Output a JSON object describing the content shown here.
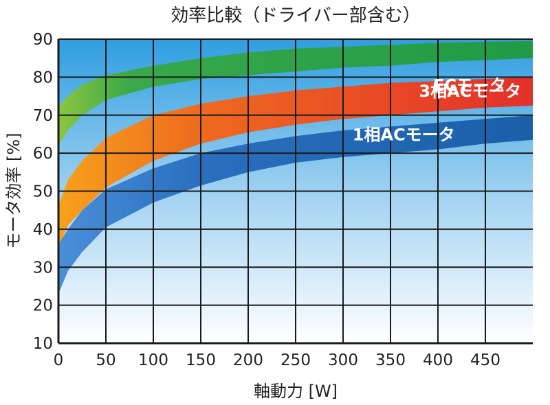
{
  "chart_data": {
    "type": "area",
    "title": "効率比較（ドライバー部含む）",
    "xlabel": "軸動力 [W]",
    "ylabel": "モータ効率 [%]",
    "xlim": [
      0,
      500
    ],
    "ylim": [
      10,
      90
    ],
    "x_ticks": [
      0,
      50,
      100,
      150,
      200,
      250,
      300,
      350,
      400,
      450
    ],
    "y_ticks": [
      10,
      20,
      30,
      40,
      50,
      60,
      70,
      80,
      90
    ],
    "grid": true,
    "series": [
      {
        "name": "ECモータ",
        "color": "#1f9a46",
        "x": [
          0,
          10,
          25,
          50,
          100,
          150,
          200,
          250,
          300,
          350,
          400,
          450,
          500
        ],
        "upper": [
          72,
          75,
          78,
          80.5,
          83,
          85,
          86.5,
          87.5,
          88,
          88.5,
          89,
          89.3,
          89.5
        ],
        "lower": [
          62,
          66,
          70,
          74,
          77.5,
          79.5,
          80.5,
          81.5,
          82.5,
          83,
          84,
          84.5,
          85
        ]
      },
      {
        "name": "3相ACモータ",
        "color": "#e2302a",
        "x": [
          0,
          10,
          25,
          50,
          100,
          150,
          200,
          250,
          300,
          350,
          400,
          450,
          500
        ],
        "upper": [
          46,
          53,
          58,
          64,
          70,
          73,
          75,
          76.5,
          77.5,
          78.5,
          79,
          79.5,
          80
        ],
        "lower": [
          35,
          41,
          45,
          51,
          58,
          62.5,
          65.5,
          67.5,
          69,
          70,
          71,
          72,
          72.5
        ]
      },
      {
        "name": "1相ACモータ",
        "color": "#1a5fa8",
        "x": [
          0,
          10,
          25,
          50,
          100,
          150,
          200,
          250,
          300,
          350,
          400,
          450,
          500
        ],
        "upper": [
          36,
          40,
          45,
          50.5,
          56,
          60,
          62.5,
          64.5,
          66,
          67,
          68,
          69,
          70
        ],
        "lower": [
          23,
          29,
          34,
          40.5,
          47,
          51.5,
          55,
          57.5,
          59,
          60,
          61,
          62.5,
          63.5
        ]
      }
    ]
  }
}
